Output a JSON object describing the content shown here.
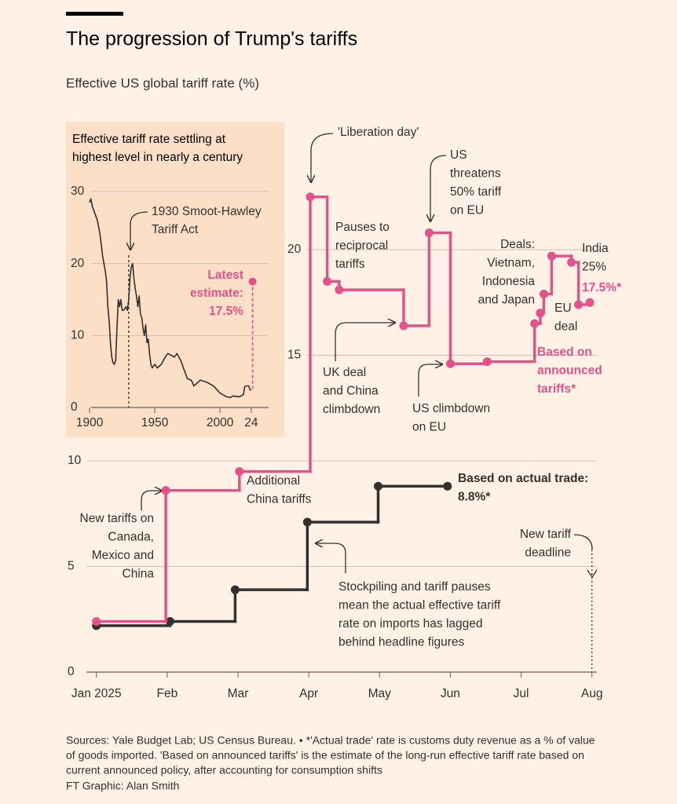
{
  "chart_data": [
    {
      "type": "line",
      "title": "The progression of Trump's tariffs",
      "subtitle": "Effective US global tariff rate (%)",
      "xlim": [
        -0.43,
        7.07
      ],
      "xticks": [
        {
          "value": 0,
          "label": "Jan 2025"
        },
        {
          "value": 1,
          "label": "Feb"
        },
        {
          "value": 2,
          "label": "Mar"
        },
        {
          "value": 3,
          "label": "Apr"
        },
        {
          "value": 4,
          "label": "May"
        },
        {
          "value": 5,
          "label": "Jun"
        },
        {
          "value": 6,
          "label": "Jul"
        },
        {
          "value": 7,
          "label": "Aug"
        }
      ],
      "ylim": [
        0,
        25
      ],
      "yticks": [
        0,
        5,
        10,
        15,
        20
      ],
      "grid": true,
      "step": "after",
      "series": [
        {
          "color": "#33302e",
          "x": [
            0,
            1.04,
            1.96,
            2.98,
            3.98,
            4.96
          ],
          "values": [
            2.2,
            2.4,
            3.9,
            7.1,
            8.8,
            8.8
          ]
        },
        {
          "color": "#e3528a",
          "x": [
            0,
            0.98,
            2.02,
            3.02,
            3.26,
            3.43,
            4.34,
            4.7,
            5.0,
            5.52,
            6.19,
            6.27,
            6.32,
            6.43,
            6.71,
            6.81,
            6.97
          ],
          "values": [
            2.4,
            8.6,
            9.5,
            22.5,
            18.5,
            18.1,
            16.4,
            20.8,
            14.6,
            14.7,
            16.5,
            17.0,
            17.9,
            19.7,
            19.4,
            17.4,
            17.5
          ]
        }
      ],
      "vlines": [
        {
          "x": 7
        }
      ],
      "annotations": [
        {
          "lines": [
            "'Liberation day'"
          ]
        },
        {
          "lines": [
            "Pauses to",
            "reciprocal",
            "tariffs"
          ]
        },
        {
          "lines": [
            "US",
            "threatens",
            "50% tariff",
            "on EU"
          ]
        },
        {
          "lines": [
            "Deals:",
            "Vietnam,",
            "Indonesia",
            "and Japan"
          ]
        },
        {
          "lines": [
            "India",
            "25%"
          ]
        },
        {
          "lines": [
            "17.5%*"
          ],
          "color": "#e3528a",
          "bold": true
        },
        {
          "lines": [
            "EU",
            "deal"
          ]
        },
        {
          "lines": [
            "Based on",
            "announced",
            "tariffs*"
          ],
          "color": "#e3528a",
          "bold": true
        },
        {
          "lines": [
            "UK deal",
            "and China",
            "climbdown"
          ]
        },
        {
          "lines": [
            "US climbdown",
            "on EU"
          ]
        },
        {
          "lines": [
            "Additional",
            "China tariffs"
          ]
        },
        {
          "lines": [
            "New tariffs on",
            "Canada,",
            "Mexico and",
            "China"
          ]
        },
        {
          "lines": [
            "Based on actual trade:",
            "8.8%*"
          ],
          "bold": true
        },
        {
          "lines": [
            "New tariff",
            "deadline"
          ]
        },
        {
          "lines": [
            "Stockpiling and tariff pauses",
            "mean the actual effective tariff",
            "rate on imports has lagged",
            "behind headline figures"
          ]
        }
      ]
    },
    {
      "type": "line",
      "title": [
        "Effective tariff rate settling at",
        "highest level in nearly a century"
      ],
      "xlim": [
        1885.5,
        2037.3
      ],
      "xticks": [
        1900,
        1950,
        2000,
        {
          "value": 2024,
          "label": "24"
        }
      ],
      "ylim": [
        0,
        30
      ],
      "yticks": [
        0,
        10,
        20,
        30
      ],
      "grid": true,
      "series": [
        {
          "color": "#33302e",
          "x": [
            1900,
            1901,
            1902,
            1904,
            1906,
            1908,
            1910,
            1912,
            1913,
            1914,
            1915,
            1916,
            1917,
            1918,
            1919,
            1920,
            1921,
            1922,
            1923,
            1924,
            1925,
            1926,
            1928,
            1929,
            1930,
            1931,
            1932,
            1933,
            1934,
            1935,
            1936,
            1937,
            1938,
            1939,
            1940,
            1941,
            1942,
            1943,
            1944,
            1945,
            1946,
            1947,
            1948,
            1950,
            1952,
            1955,
            1958,
            1960,
            1962,
            1965,
            1967,
            1970,
            1972,
            1975,
            1978,
            1980,
            1985,
            1990,
            1995,
            2000,
            2005,
            2008,
            2010,
            2015,
            2018,
            2019,
            2020,
            2022,
            2023,
            2024
          ],
          "values": [
            28.5,
            29,
            28,
            27,
            26,
            24,
            21,
            19,
            17.5,
            14,
            12,
            9,
            7,
            6.2,
            6,
            6.5,
            11,
            15,
            14,
            15,
            13.5,
            13.5,
            14,
            13.5,
            15,
            18,
            19.5,
            20,
            18,
            16.5,
            15.5,
            14,
            15.5,
            13,
            12.5,
            11,
            10,
            11.5,
            9,
            9.5,
            7.5,
            6,
            5.5,
            6,
            5.5,
            6,
            7,
            7.5,
            7.3,
            7,
            7.5,
            6.5,
            5.5,
            4,
            3.8,
            3,
            3.8,
            3.5,
            3,
            2,
            1.5,
            1.4,
            1.6,
            1.5,
            1.8,
            2.9,
            3,
            3,
            2.5,
            2.4
          ]
        },
        {
          "color": "#e3528a",
          "x": [
            2025
          ],
          "values": [
            17.5
          ],
          "drop": true
        }
      ],
      "vlines": [
        {
          "x": 1930
        }
      ],
      "annotations": [
        {
          "lines": [
            "1930 Smoot-Hawley",
            "Tariff Act"
          ]
        },
        {
          "lines": [
            "Latest",
            "estimate:",
            "17.5%"
          ],
          "color": "#e3528a",
          "bold": true
        }
      ]
    }
  ],
  "footer": {
    "lines": [
      "Sources: Yale Budget Lab; US Census Bureau. • *'Actual trade' rate is customs duty revenue as a % of value",
      "of goods imported. 'Based on announced tariffs' is the estimate of the long-run effective tariff rate based on",
      "current announced policy, after accounting for consumption shifts"
    ],
    "credit": "FT Graphic: Alan Smith"
  }
}
